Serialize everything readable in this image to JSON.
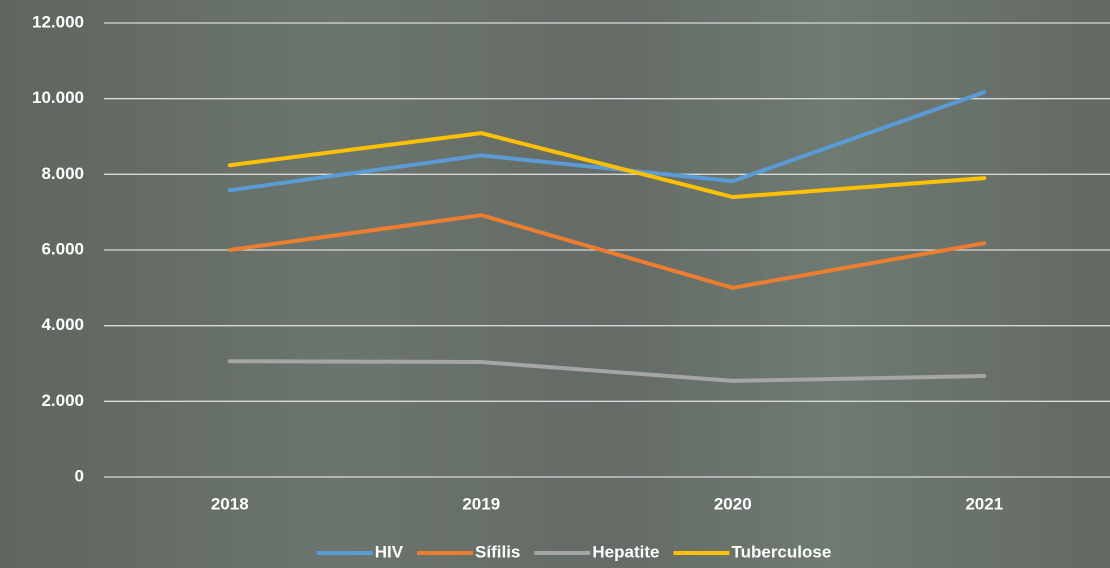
{
  "chart_data": {
    "type": "line",
    "categories": [
      "2018",
      "2019",
      "2020",
      "2021"
    ],
    "series": [
      {
        "name": "HIV",
        "color": "#5b9bd5",
        "values": [
          7580,
          8500,
          7820,
          10170
        ]
      },
      {
        "name": "Sífilis",
        "color": "#ed7d31",
        "values": [
          6000,
          6920,
          5000,
          6180
        ]
      },
      {
        "name": "Hepatite",
        "color": "#a5a5a5",
        "values": [
          3060,
          3040,
          2540,
          2670
        ]
      },
      {
        "name": "Tuberculose",
        "color": "#ffc000",
        "values": [
          8240,
          9090,
          7400,
          7900
        ]
      }
    ],
    "ylim": [
      0,
      12000
    ],
    "yticks": [
      0,
      {
        "value": 2000,
        "label": "2.000"
      },
      {
        "value": 4000,
        "label": "4.000"
      },
      {
        "value": 6000,
        "label": "6.000"
      },
      {
        "value": 8000,
        "label": "8.000"
      },
      {
        "value": 10000,
        "label": "10.000"
      },
      {
        "value": 12000,
        "label": "12.000"
      }
    ],
    "grid": true,
    "legend": "bottom"
  }
}
